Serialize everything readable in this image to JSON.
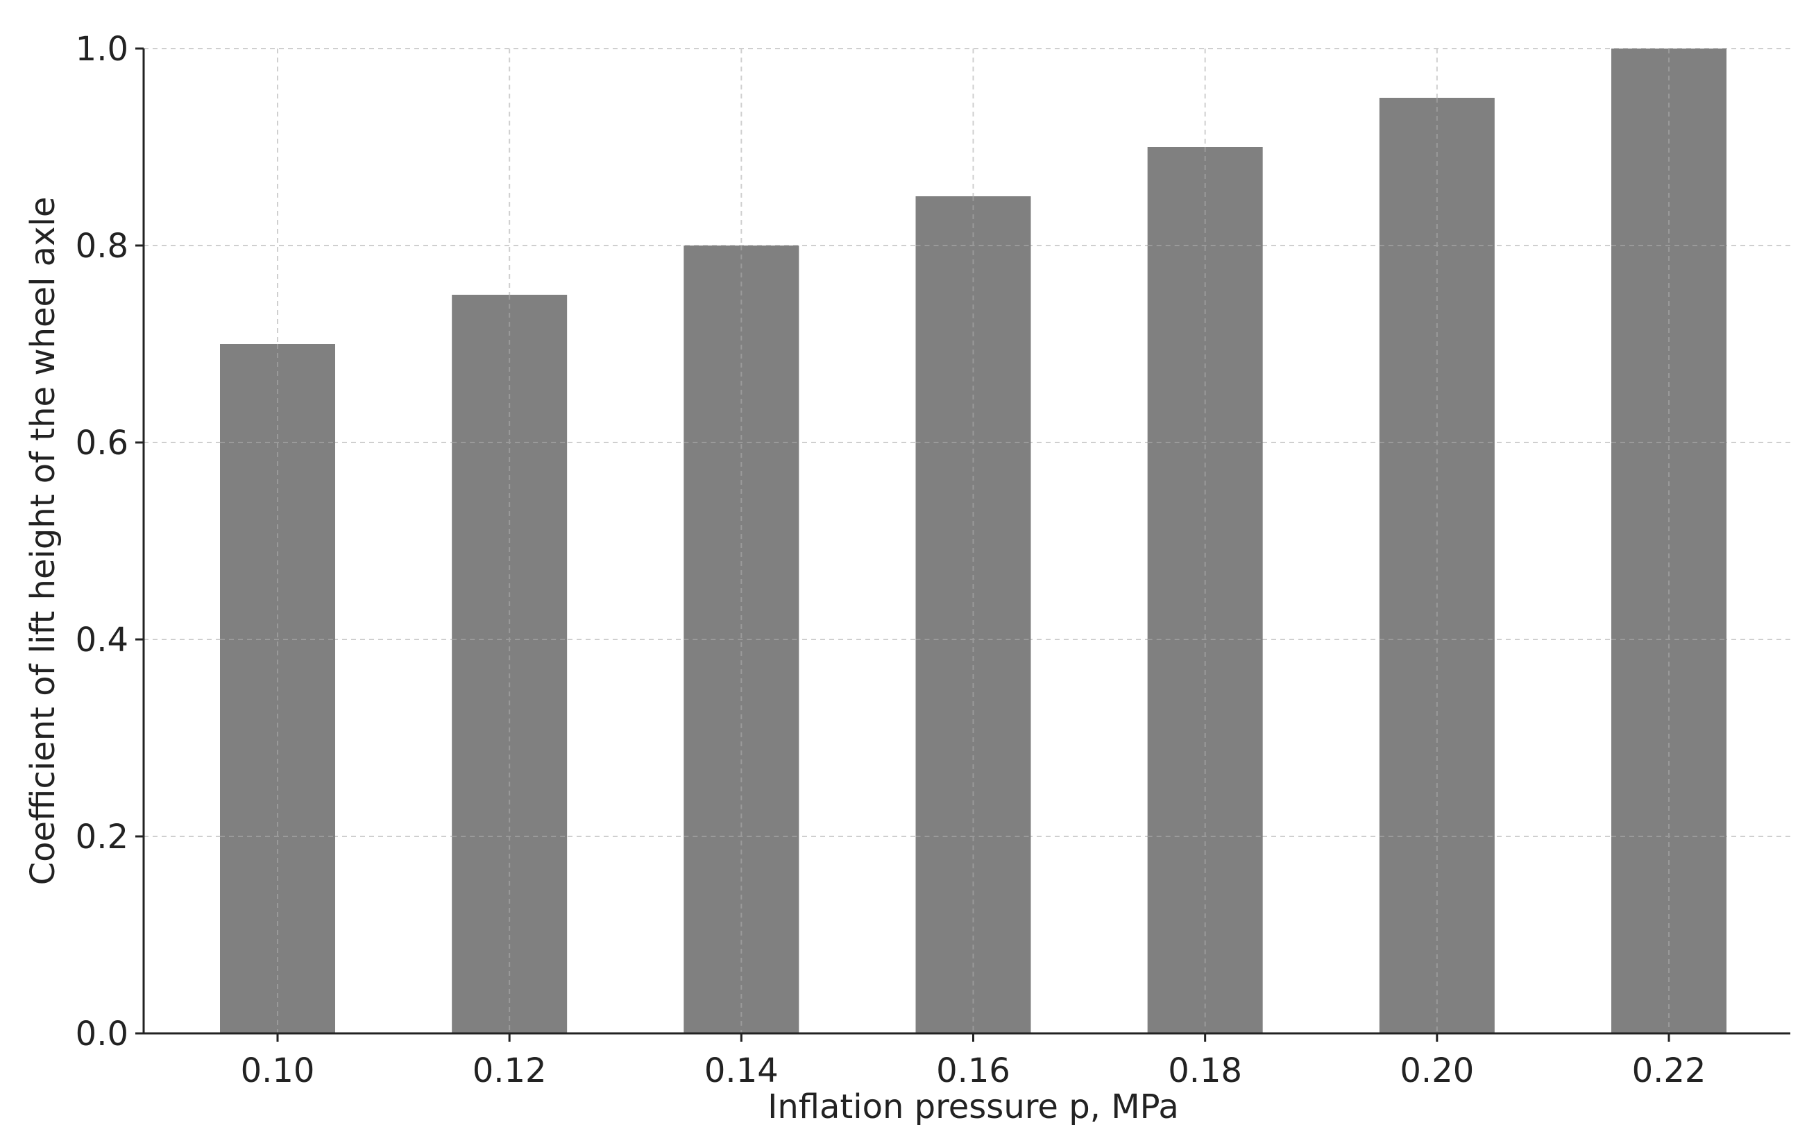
{
  "chart_data": {
    "type": "bar",
    "categories": [
      "0.10",
      "0.12",
      "0.14",
      "0.16",
      "0.18",
      "0.20",
      "0.22"
    ],
    "values": [
      0.7,
      0.75,
      0.8,
      0.85,
      0.9,
      0.95,
      1.0
    ],
    "title": "",
    "xlabel": "Inflation pressure p, MPa",
    "ylabel": "Coefficient of lift height of the wheel axle",
    "ylim": [
      0,
      1.0
    ],
    "yticks": [
      "0.0",
      "0.2",
      "0.4",
      "0.6",
      "0.8",
      "1.0"
    ],
    "grid": true,
    "legend": "none",
    "colors": {
      "bar": "#808080",
      "grid": "#cfcfcf",
      "axis": "#222222"
    }
  }
}
